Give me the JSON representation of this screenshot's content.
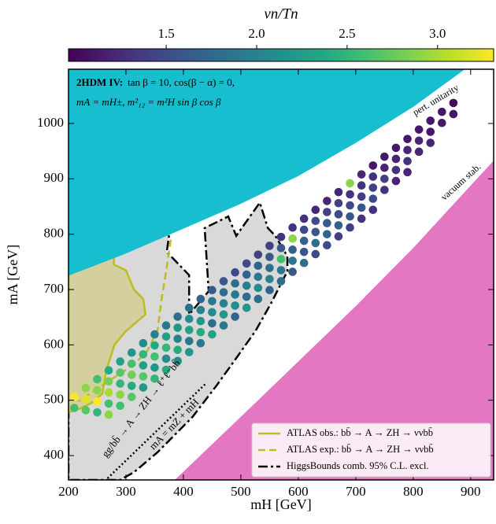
{
  "chart_data": {
    "type": "scatter",
    "annotation_label": "2HDM IV:",
    "annotation_lines": [
      "tan β = 10,  cos(β − α) = 0,",
      "mA = mH±,  m²₁₂ = m²H sin β cos β"
    ],
    "xlabel": "mH [GeV]",
    "ylabel": "mA [GeV]",
    "colorbar_label": "vn/Tn",
    "colormap": "viridis",
    "clim": [
      0.96,
      3.31
    ],
    "cticks": [
      1.5,
      {
        "value": 2,
        "label": "2.0"
      },
      2.5,
      {
        "value": 3,
        "label": "3.0"
      }
    ],
    "xlim": [
      200,
      940
    ],
    "xticks": [
      200,
      300,
      400,
      500,
      600,
      700,
      800,
      900
    ],
    "ylim": [
      356,
      1098
    ],
    "yticks": [
      400,
      500,
      600,
      700,
      800,
      900,
      1000
    ],
    "legend": "lower right",
    "x": [
      210,
      210,
      230,
      230,
      230,
      250,
      250,
      250,
      250,
      270,
      270,
      270,
      270,
      270,
      290,
      290,
      290,
      290,
      290,
      310,
      310,
      310,
      310,
      310,
      330,
      330,
      330,
      330,
      330,
      350,
      350,
      350,
      350,
      350,
      370,
      370,
      370,
      370,
      370,
      390,
      390,
      390,
      390,
      390,
      410,
      410,
      410,
      410,
      410,
      430,
      430,
      430,
      430,
      430,
      450,
      450,
      450,
      450,
      450,
      470,
      470,
      470,
      470,
      470,
      490,
      490,
      490,
      490,
      490,
      510,
      510,
      510,
      510,
      510,
      530,
      530,
      530,
      530,
      530,
      550,
      550,
      550,
      550,
      550,
      570,
      570,
      570,
      570,
      570,
      590,
      590,
      590,
      590,
      590,
      610,
      610,
      610,
      610,
      610,
      630,
      630,
      630,
      630,
      630,
      650,
      650,
      650,
      650,
      650,
      670,
      670,
      670,
      670,
      670,
      690,
      690,
      690,
      690,
      690,
      710,
      710,
      710,
      710,
      710,
      730,
      730,
      730,
      730,
      730,
      750,
      750,
      750,
      750,
      770,
      770,
      770,
      770,
      790,
      790,
      790,
      790,
      810,
      810,
      810,
      830,
      830,
      830,
      850,
      850,
      870,
      870
    ],
    "values": [
      506,
      486,
      522,
      502,
      482,
      538,
      518,
      498,
      478,
      554,
      534,
      514,
      494,
      474,
      570,
      550,
      530,
      510,
      490,
      586,
      566,
      546,
      526,
      506,
      603,
      583,
      563,
      543,
      523,
      619,
      599,
      579,
      559,
      539,
      635,
      615,
      595,
      575,
      555,
      651,
      631,
      611,
      591,
      571,
      667,
      647,
      627,
      607,
      587,
      683,
      663,
      643,
      623,
      603,
      699,
      679,
      659,
      639,
      619,
      715,
      695,
      675,
      655,
      635,
      731,
      711,
      691,
      671,
      651,
      747,
      727,
      707,
      687,
      667,
      763,
      743,
      723,
      703,
      683,
      779,
      759,
      739,
      719,
      699,
      795,
      775,
      755,
      735,
      715,
      812,
      792,
      772,
      752,
      732,
      828,
      808,
      788,
      768,
      748,
      844,
      824,
      804,
      784,
      764,
      860,
      840,
      820,
      800,
      780,
      876,
      856,
      836,
      816,
      796,
      892,
      872,
      852,
      832,
      812,
      908,
      888,
      868,
      848,
      828,
      924,
      904,
      884,
      864,
      844,
      940,
      920,
      900,
      880,
      956,
      936,
      916,
      896,
      972,
      952,
      932,
      912,
      989,
      969,
      949,
      1005,
      985,
      965,
      1021,
      1001,
      1037,
      1017
    ],
    "c": [
      3.3,
      2.6,
      2.9,
      3.2,
      2.7,
      2.6,
      2.9,
      3.3,
      2.5,
      2.4,
      2.8,
      3.0,
      2.6,
      2.9,
      2.3,
      2.7,
      2.5,
      2.9,
      2.6,
      2.2,
      2.6,
      2.8,
      2.4,
      2.7,
      2.1,
      2.5,
      2.3,
      2.7,
      2.2,
      2.0,
      2.4,
      2.6,
      2.2,
      2.5,
      1.9,
      2.3,
      2.5,
      2.1,
      2.4,
      1.8,
      2.2,
      2.0,
      2.4,
      2.1,
      1.8,
      2.1,
      2.3,
      1.9,
      2.2,
      1.7,
      2.0,
      2.2,
      2.4,
      1.9,
      1.6,
      1.9,
      2.1,
      1.8,
      2.3,
      1.6,
      1.8,
      2.0,
      2.2,
      1.9,
      1.5,
      1.8,
      1.9,
      2.1,
      1.7,
      1.5,
      1.7,
      2.0,
      1.8,
      2.2,
      1.4,
      1.7,
      1.9,
      2.1,
      1.8,
      1.4,
      1.6,
      1.8,
      2.0,
      1.7,
      1.3,
      1.6,
      2.6,
      1.9,
      1.8,
      1.3,
      2.9,
      1.7,
      1.9,
      1.6,
      1.3,
      1.5,
      1.7,
      1.6,
      1.8,
      1.2,
      1.5,
      1.6,
      1.8,
      1.5,
      1.2,
      1.4,
      1.6,
      1.7,
      1.5,
      1.2,
      1.4,
      1.5,
      1.7,
      1.4,
      2.9,
      1.3,
      1.5,
      1.6,
      1.4,
      1.2,
      1.3,
      1.4,
      1.6,
      1.3,
      1.1,
      1.3,
      1.4,
      1.5,
      1.3,
      1.1,
      1.2,
      1.4,
      1.3,
      1.1,
      1.2,
      1.3,
      1.2,
      1.1,
      1.2,
      1.3,
      1.2,
      1.1,
      1.2,
      1.2,
      1.1,
      1.1,
      1.2,
      1.1,
      1.1,
      1.0,
      1.1
    ],
    "regions": [
      {
        "label": "pert. unitarity",
        "color": "#17becf",
        "x": [
          200,
          300,
          400,
          500,
          600,
          700,
          800,
          890,
          890,
          200
        ],
        "y": [
          725,
          765,
          810,
          855,
          905,
          965,
          1030,
          1098,
          1098,
          1098
        ]
      },
      {
        "label": "vacuum stab.",
        "color": "#e377c2",
        "x": [
          385,
          500,
          600,
          700,
          800,
          940,
          940
        ],
        "y": [
          356,
          470,
          570,
          670,
          775,
          933,
          356
        ]
      }
    ],
    "lines": [
      {
        "name": "ATLAS obs.: bb̄ → A → ZH → ννbb̄",
        "color": "#bcbd22",
        "fill": "#d4cf9e",
        "style": "solid",
        "x": [
          200,
          279,
          279,
          300,
          314,
          330,
          334,
          300,
          280,
          266,
          259,
          240,
          218,
          200
        ],
        "y": [
          760,
          760,
          745,
          735,
          700,
          683,
          655,
          625,
          600,
          555,
          512,
          495,
          484,
          478
        ]
      },
      {
        "name": "ATLAS exp.: bb̄ → A → ZH → ννbb̄",
        "color": "#bcbd22",
        "style": "dashed",
        "x": [
          378,
          371,
          362,
          355,
          334,
          300,
          259,
          218
        ],
        "y": [
          790,
          740,
          683,
          626,
          583,
          555,
          527,
          498
        ]
      },
      {
        "name": "HiggsBounds comb. 95% C.L. excl.",
        "color": "#000000",
        "fill": "#d9d9d9",
        "style": "dashdot",
        "label": "gg/bb̄ → A → ZH → ℓ⁺ℓ⁻bb̄",
        "x": [
          380,
          375,
          371,
          410,
          410,
          444,
          437,
          478,
          492,
          533,
          547,
          560,
          581,
          581,
          553,
          526,
          492,
          458,
          416,
          355,
          314,
          290,
          200,
          200
        ],
        "y": [
          820,
          797,
          768,
          726,
          655,
          697,
          811,
          832,
          797,
          857,
          811,
          797,
          760,
          733,
          676,
          626,
          576,
          527,
          470,
          406,
          370,
          356,
          356,
          820
        ]
      }
    ],
    "reference_line": {
      "label": "mA = mZ + mH",
      "x": [
        268,
        440
      ],
      "y": [
        359,
        531
      ]
    }
  }
}
